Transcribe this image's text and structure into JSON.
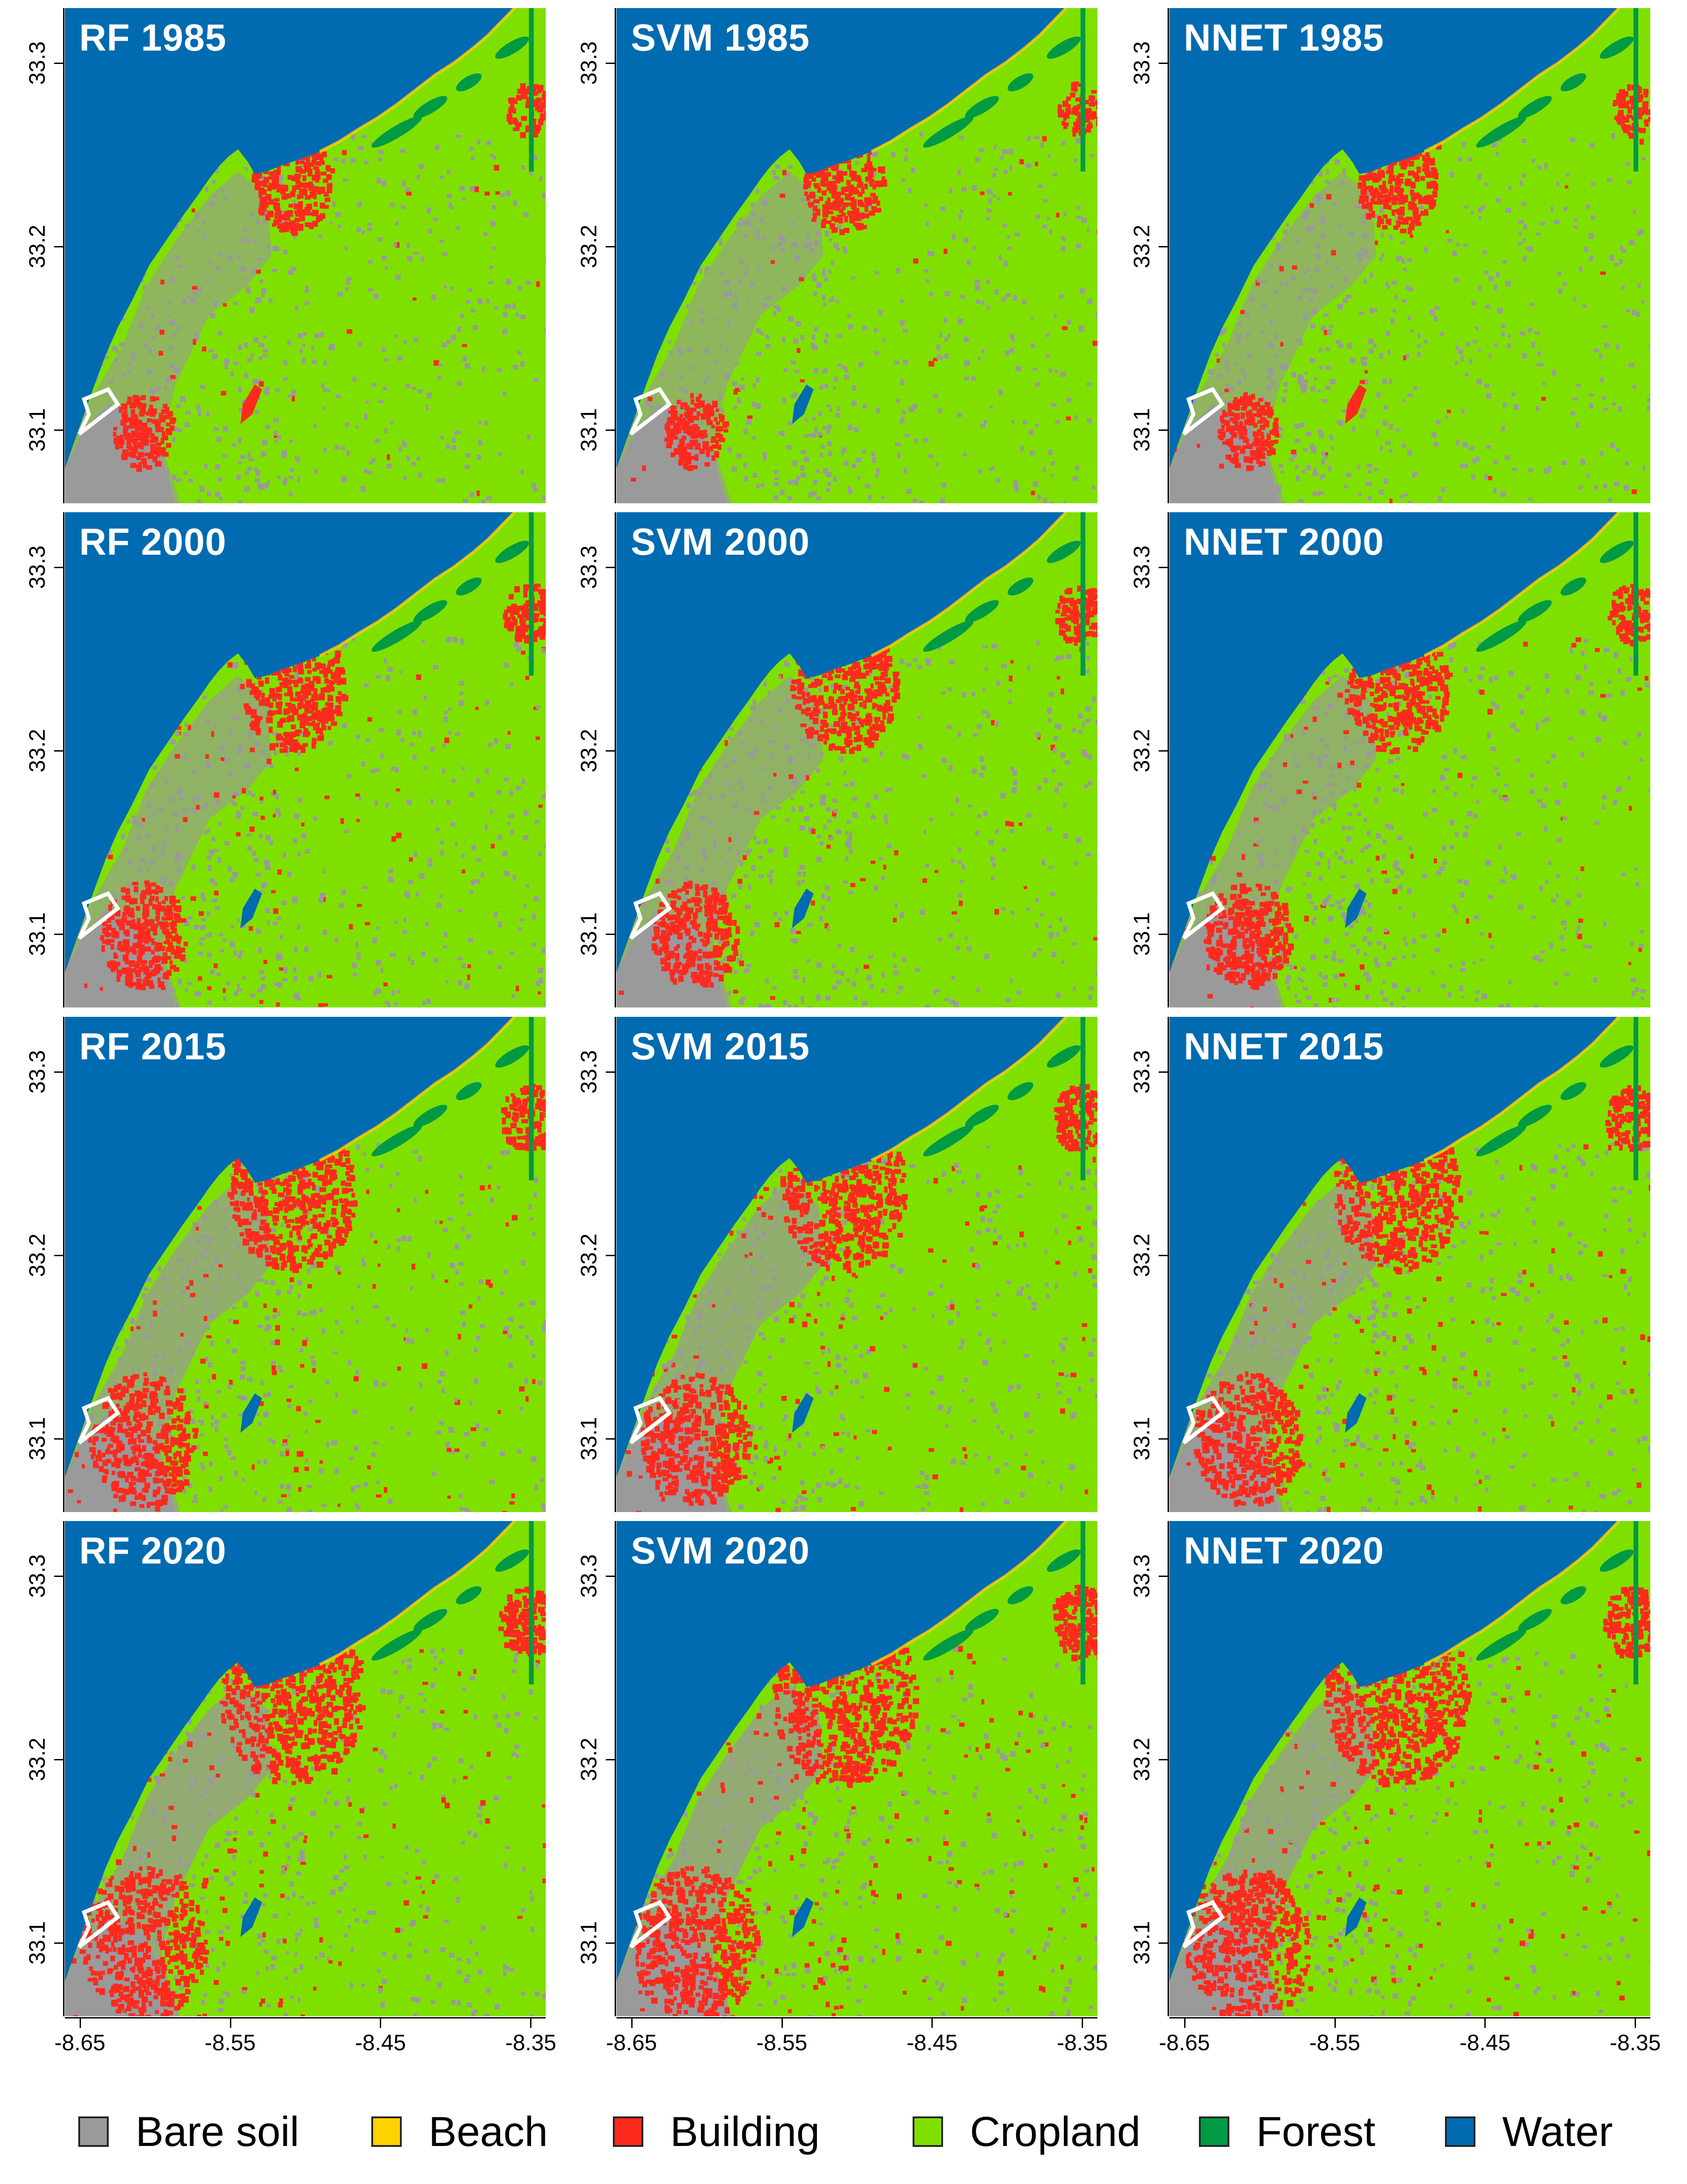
{
  "colors": {
    "bare_soil": "#9a9a9a",
    "beach": "#ffd200",
    "building": "#ff2a1e",
    "cropland": "#7fe000",
    "forest": "#009a44",
    "water": "#006bb0"
  },
  "panels": [
    {
      "title": "RF 1985",
      "method": "RF",
      "year": "1985"
    },
    {
      "title": "SVM 1985",
      "method": "SVM",
      "year": "1985"
    },
    {
      "title": "NNET 1985",
      "method": "NNET",
      "year": "1985"
    },
    {
      "title": "RF 2000",
      "method": "RF",
      "year": "2000"
    },
    {
      "title": "SVM 2000",
      "method": "SVM",
      "year": "2000"
    },
    {
      "title": "NNET 2000",
      "method": "NNET",
      "year": "2000"
    },
    {
      "title": "RF 2015",
      "method": "RF",
      "year": "2015"
    },
    {
      "title": "SVM 2015",
      "method": "SVM",
      "year": "2015"
    },
    {
      "title": "NNET 2015",
      "method": "NNET",
      "year": "2015"
    },
    {
      "title": "RF 2020",
      "method": "RF",
      "year": "2020"
    },
    {
      "title": "SVM 2020",
      "method": "SVM",
      "year": "2020"
    },
    {
      "title": "NNET 2020",
      "method": "NNET",
      "year": "2020"
    }
  ],
  "axes": {
    "y_ticks": [
      "33.3",
      "33.2",
      "33.1"
    ],
    "x_ticks": [
      "-8.65",
      "-8.55",
      "-8.45",
      "-8.35"
    ],
    "xlim": [
      -8.66,
      -8.34
    ],
    "ylim": [
      33.06,
      33.33
    ]
  },
  "legend": [
    {
      "label": "Bare soil",
      "color": "#9a9a9a"
    },
    {
      "label": "Beach",
      "color": "#ffd200"
    },
    {
      "label": "Building",
      "color": "#ff2a1e"
    },
    {
      "label": "Cropland",
      "color": "#7fe000"
    },
    {
      "label": "Forest",
      "color": "#009a44"
    },
    {
      "label": "Water",
      "color": "#006bb0"
    }
  ]
}
